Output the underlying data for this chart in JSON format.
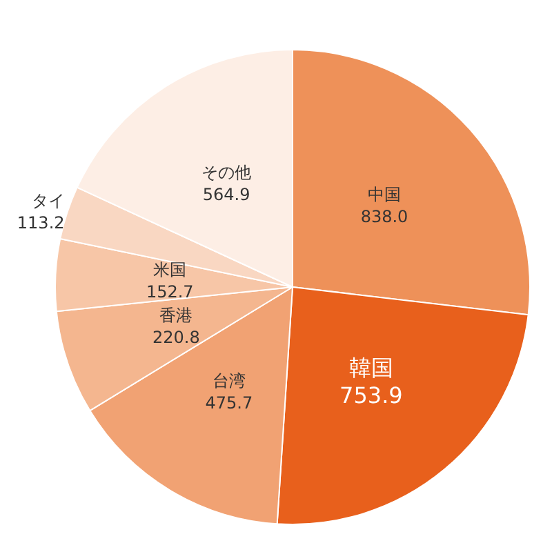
{
  "chart_data": {
    "type": "pie",
    "categories": [
      "中国",
      "韓国",
      "台湾",
      "香港",
      "米国",
      "タイ",
      "その他"
    ],
    "values": [
      838.0,
      753.9,
      475.7,
      220.8,
      152.7,
      113.2,
      564.9
    ],
    "colors": [
      "#ee9159",
      "#e8601c",
      "#f1a273",
      "#f4b68f",
      "#f7c6a7",
      "#f9d7c2",
      "#fdeee5"
    ],
    "value_labels": [
      "838.0",
      "753.9",
      "475.7",
      "220.8",
      "152.7",
      "113.2",
      "564.9"
    ]
  }
}
